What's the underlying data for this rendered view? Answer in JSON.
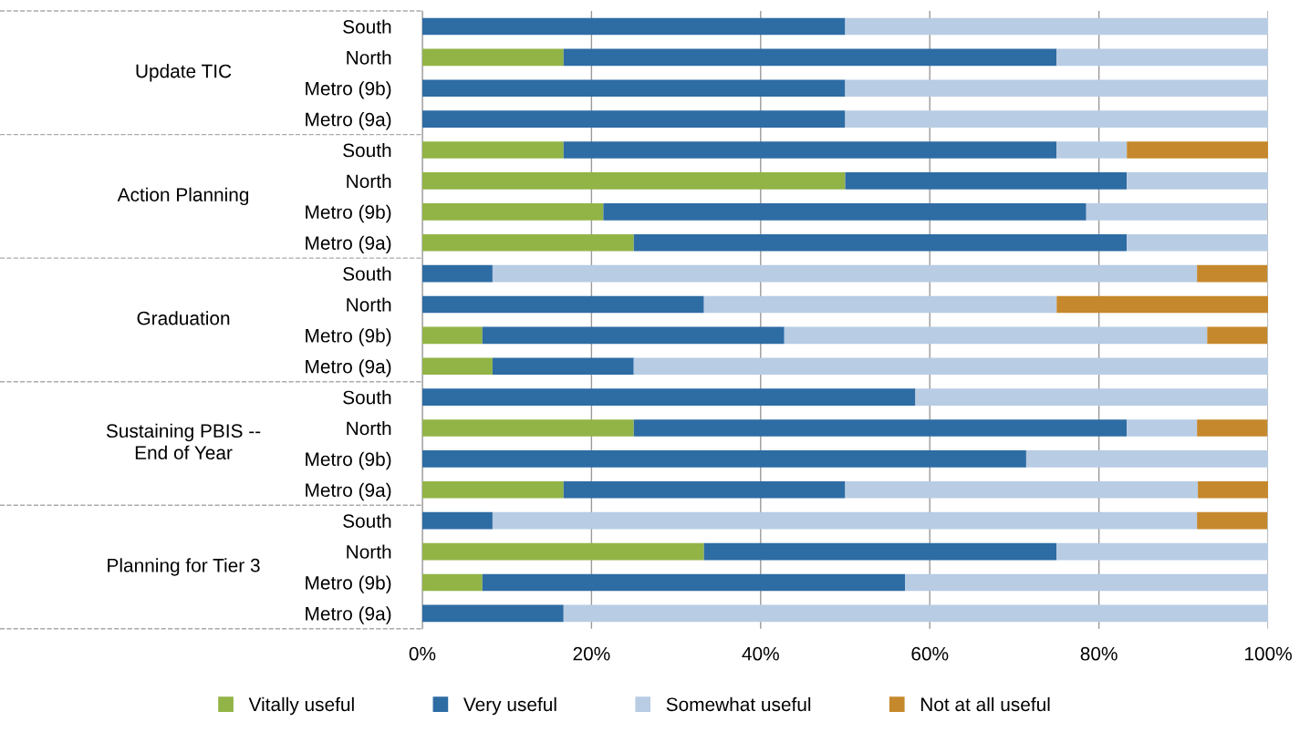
{
  "chart_data": {
    "type": "bar",
    "orientation": "horizontal",
    "stacked": true,
    "categories": [
      "South",
      "North",
      "Metro (9b)",
      "Metro (9a)",
      "South",
      "North",
      "Metro (9b)",
      "Metro (9a)",
      "South",
      "North",
      "Metro (9b)",
      "Metro (9a)",
      "South",
      "North",
      "Metro (9b)",
      "Metro (9a)",
      "South",
      "North",
      "Metro (9b)",
      "Metro (9a)"
    ],
    "series": [
      {
        "name": "Vitally useful",
        "color": "#92b446",
        "values": [
          0,
          16.7,
          0,
          0,
          16.7,
          50,
          21.4,
          25,
          0,
          0,
          7.1,
          8.3,
          0,
          25,
          0,
          16.7,
          0,
          33.3,
          7.1,
          0
        ]
      },
      {
        "name": "Very useful",
        "color": "#2e6ca4",
        "values": [
          50,
          58.3,
          50,
          50,
          58.3,
          33.3,
          57.1,
          58.3,
          8.3,
          33.3,
          35.7,
          16.7,
          58.3,
          58.3,
          71.4,
          33.3,
          8.3,
          41.7,
          50,
          16.7
        ]
      },
      {
        "name": "Somewhat useful",
        "color": "#b8cce4",
        "values": [
          50,
          25,
          50,
          50,
          8.3,
          16.7,
          21.4,
          16.7,
          83.3,
          41.7,
          50,
          75,
          41.7,
          8.3,
          28.6,
          41.7,
          83.3,
          25,
          42.9,
          83.3
        ]
      },
      {
        "name": "Not at all useful",
        "color": "#c5882c",
        "values": [
          0,
          0,
          0,
          0,
          16.7,
          0,
          0,
          0,
          8.3,
          25,
          7.1,
          0,
          0,
          8.3,
          0,
          8.3,
          8.3,
          0,
          0,
          0
        ]
      }
    ],
    "xlim": [
      0,
      100
    ],
    "xticks": [
      {
        "value": 0,
        "label": "0%"
      },
      {
        "value": 20,
        "label": "20%"
      },
      {
        "value": 40,
        "label": "40%"
      },
      {
        "value": 60,
        "label": "60%"
      },
      {
        "value": 80,
        "label": "80%"
      },
      {
        "value": 100,
        "label": "100%"
      }
    ],
    "grid": "x",
    "legend": "bottom",
    "annotations": [
      "Update TIC",
      "Action Planning",
      "Graduation",
      "Sustaining PBIS --\nEnd of Year",
      "Planning for Tier 3"
    ]
  }
}
